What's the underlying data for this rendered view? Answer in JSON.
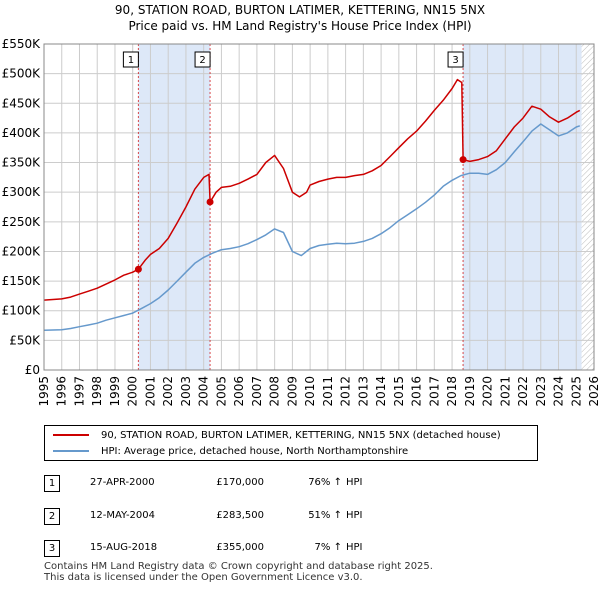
{
  "title_line1": "90, STATION ROAD, BURTON LATIMER, KETTERING, NN15 5NX",
  "title_line2": "Price paid vs. HM Land Registry's House Price Index (HPI)",
  "colors": {
    "property": "#cc0000",
    "hpi": "#6699cc",
    "shade": "#dde8f8",
    "grid": "#cccccc"
  },
  "legend": {
    "property_label": "90, STATION ROAD, BURTON LATIMER, KETTERING, NN15 5NX (detached house)",
    "hpi_label": "HPI: Average price, detached house, North Northamptonshire"
  },
  "transactions": [
    {
      "num": "1",
      "date": "27-APR-2000",
      "price": "£170,000",
      "pct": "76%",
      "arrow": "↑",
      "hpi": "HPI"
    },
    {
      "num": "2",
      "date": "12-MAY-2004",
      "price": "£283,500",
      "pct": "51%",
      "arrow": "↑",
      "hpi": "HPI"
    },
    {
      "num": "3",
      "date": "15-AUG-2018",
      "price": "£355,000",
      "pct": "7%",
      "arrow": "↑",
      "hpi": "HPI"
    }
  ],
  "footer_line1": "Contains HM Land Registry data © Crown copyright and database right 2025.",
  "footer_line2": "This data is licensed under the Open Government Licence v3.0.",
  "chart_data": {
    "type": "line",
    "xlim": [
      1995,
      2026
    ],
    "ylim": [
      0,
      550000
    ],
    "yticks": [
      0,
      50000,
      100000,
      150000,
      200000,
      250000,
      300000,
      350000,
      400000,
      450000,
      500000,
      550000
    ],
    "yticklabels": [
      "£0",
      "£50K",
      "£100K",
      "£150K",
      "£200K",
      "£250K",
      "£300K",
      "£350K",
      "£400K",
      "£450K",
      "£500K",
      "£550K"
    ],
    "xticks": [
      1995,
      1996,
      1997,
      1998,
      1999,
      2000,
      2001,
      2002,
      2003,
      2004,
      2005,
      2006,
      2007,
      2008,
      2009,
      2010,
      2011,
      2012,
      2013,
      2014,
      2015,
      2016,
      2017,
      2018,
      2019,
      2020,
      2021,
      2022,
      2023,
      2024,
      2025,
      2026
    ],
    "shaded_ranges": [
      [
        2000.32,
        2004.36
      ],
      [
        2018.62,
        2025.3
      ]
    ],
    "hatched_range": [
      2025.3,
      2026
    ],
    "sale_markers": [
      {
        "label": "1",
        "x": 2000.32,
        "y": 170000
      },
      {
        "label": "2",
        "x": 2004.36,
        "y": 283500
      },
      {
        "label": "3",
        "x": 2018.62,
        "y": 355000
      }
    ],
    "series": [
      {
        "name": "90, STATION ROAD, BURTON LATIMER, KETTERING, NN15 5NX (detached house)",
        "color": "#cc0000",
        "x": [
          1995.0,
          1995.5,
          1996.0,
          1996.5,
          1997.0,
          1997.5,
          1998.0,
          1998.5,
          1999.0,
          1999.5,
          2000.0,
          2000.32,
          2000.7,
          2001.0,
          2001.5,
          2002.0,
          2002.5,
          2003.0,
          2003.5,
          2004.0,
          2004.3,
          2004.36,
          2004.7,
          2005.0,
          2005.5,
          2006.0,
          2006.5,
          2007.0,
          2007.5,
          2008.0,
          2008.5,
          2009.0,
          2009.4,
          2009.8,
          2010.0,
          2010.5,
          2011.0,
          2011.5,
          2012.0,
          2012.5,
          2013.0,
          2013.5,
          2014.0,
          2014.5,
          2015.0,
          2015.5,
          2016.0,
          2016.5,
          2017.0,
          2017.5,
          2018.0,
          2018.3,
          2018.55,
          2018.62,
          2019.0,
          2019.5,
          2020.0,
          2020.5,
          2021.0,
          2021.5,
          2022.0,
          2022.5,
          2023.0,
          2023.5,
          2024.0,
          2024.5,
          2025.0,
          2025.2
        ],
        "y": [
          118000,
          119000,
          120000,
          123000,
          128000,
          133000,
          138000,
          145000,
          152000,
          160000,
          165000,
          170000,
          185000,
          195000,
          205000,
          222000,
          248000,
          275000,
          305000,
          325000,
          330000,
          283500,
          300000,
          308000,
          310000,
          315000,
          322000,
          330000,
          350000,
          362000,
          340000,
          300000,
          292000,
          300000,
          312000,
          318000,
          322000,
          325000,
          325000,
          328000,
          330000,
          336000,
          345000,
          360000,
          375000,
          390000,
          403000,
          420000,
          438000,
          455000,
          475000,
          490000,
          485000,
          355000,
          352000,
          355000,
          360000,
          370000,
          390000,
          410000,
          425000,
          445000,
          440000,
          427000,
          418000,
          425000,
          435000,
          438000
        ]
      },
      {
        "name": "HPI: Average price, detached house, North Northamptonshire",
        "color": "#6699cc",
        "x": [
          1995.0,
          1995.5,
          1996.0,
          1996.5,
          1997.0,
          1997.5,
          1998.0,
          1998.5,
          1999.0,
          1999.5,
          2000.0,
          2000.5,
          2001.0,
          2001.5,
          2002.0,
          2002.5,
          2003.0,
          2003.5,
          2004.0,
          2004.5,
          2005.0,
          2005.5,
          2006.0,
          2006.5,
          2007.0,
          2007.5,
          2008.0,
          2008.5,
          2009.0,
          2009.5,
          2010.0,
          2010.5,
          2011.0,
          2011.5,
          2012.0,
          2012.5,
          2013.0,
          2013.5,
          2014.0,
          2014.5,
          2015.0,
          2015.5,
          2016.0,
          2016.5,
          2017.0,
          2017.5,
          2018.0,
          2018.5,
          2019.0,
          2019.5,
          2020.0,
          2020.5,
          2021.0,
          2021.5,
          2022.0,
          2022.5,
          2023.0,
          2023.5,
          2024.0,
          2024.5,
          2025.0,
          2025.2
        ],
        "y": [
          67000,
          67500,
          68000,
          70000,
          73000,
          76000,
          79000,
          84000,
          88000,
          92000,
          96000,
          104000,
          112000,
          122000,
          135000,
          150000,
          165000,
          180000,
          190000,
          197000,
          203000,
          205000,
          208000,
          213000,
          220000,
          228000,
          238000,
          232000,
          200000,
          193000,
          205000,
          210000,
          212000,
          214000,
          213000,
          214000,
          217000,
          222000,
          230000,
          240000,
          252000,
          262000,
          272000,
          283000,
          295000,
          310000,
          320000,
          328000,
          332000,
          332000,
          330000,
          338000,
          350000,
          368000,
          385000,
          403000,
          415000,
          405000,
          395000,
          400000,
          410000,
          412000
        ]
      }
    ]
  }
}
